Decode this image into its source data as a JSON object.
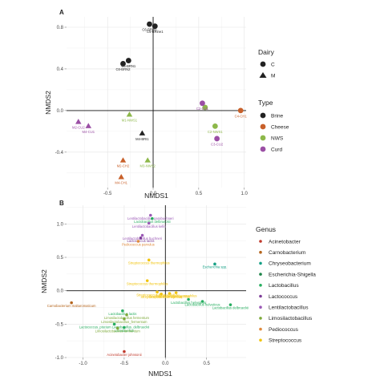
{
  "chart_data": [
    {
      "type": "scatter",
      "panel_label": "A",
      "xlabel": "NMDS1",
      "ylabel": "NMDS2",
      "xlim": [
        -0.95,
        1.02
      ],
      "ylim": [
        -0.74,
        0.9
      ],
      "x_ticks": [
        -0.5,
        0.0,
        0.5,
        1.0
      ],
      "x_tick_labels": [
        "-0.5",
        "0.0",
        "0.5",
        "1.0"
      ],
      "y_ticks": [
        -0.4,
        0.0,
        0.4,
        0.8
      ],
      "y_tick_labels": [
        "-0.4",
        "0.0",
        "0.4",
        "0.8"
      ],
      "grid": true,
      "reference_lines": {
        "x": 0,
        "y": 0
      },
      "legend": [
        {
          "title": "Dairy",
          "entries": [
            {
              "label": "C",
              "shape": "circle"
            },
            {
              "label": "M",
              "shape": "triangle"
            }
          ]
        },
        {
          "title": "Type",
          "entries": [
            {
              "label": "Brine",
              "color": "#222222"
            },
            {
              "label": "Cheese",
              "color": "#c8602a"
            },
            {
              "label": "NWS",
              "color": "#8db84a"
            },
            {
              "label": "Curd",
              "color": "#9b4fa5"
            }
          ]
        }
      ],
      "points": [
        {
          "x": -0.04,
          "y": 0.83,
          "shape": "circle",
          "type": "Brine",
          "label": "C6-BRine"
        },
        {
          "x": 0.02,
          "y": 0.81,
          "shape": "circle",
          "type": "Brine",
          "label": "C5-BRine1"
        },
        {
          "x": -0.27,
          "y": 0.48,
          "shape": "circle",
          "type": "Brine",
          "label": "C5-BRN1"
        },
        {
          "x": -0.33,
          "y": 0.45,
          "shape": "circle",
          "type": "Brine",
          "label": "C6-BRN2"
        },
        {
          "x": -0.12,
          "y": -0.22,
          "shape": "triangle",
          "type": "Brine",
          "label": "M4-BRI1"
        },
        {
          "x": 0.96,
          "y": 0.0,
          "shape": "circle",
          "type": "Cheese",
          "label": "C4-CH1"
        },
        {
          "x": -0.33,
          "y": -0.48,
          "shape": "triangle",
          "type": "Cheese",
          "label": "M2-CH2"
        },
        {
          "x": -0.35,
          "y": -0.64,
          "shape": "triangle",
          "type": "Cheese",
          "label": "M4-CH1"
        },
        {
          "x": -0.26,
          "y": -0.04,
          "shape": "triangle",
          "type": "NWS",
          "label": "M1-NWS1"
        },
        {
          "x": -0.06,
          "y": -0.48,
          "shape": "triangle",
          "type": "NWS",
          "label": "M3-NWS2"
        },
        {
          "x": 0.68,
          "y": -0.15,
          "shape": "circle",
          "type": "NWS",
          "label": "C2-NWS1"
        },
        {
          "x": 0.57,
          "y": 0.03,
          "shape": "circle",
          "type": "NWS",
          "label": ""
        },
        {
          "x": 0.54,
          "y": 0.07,
          "shape": "circle",
          "type": "Curd",
          "label": "C2-CU1"
        },
        {
          "x": 0.7,
          "y": -0.27,
          "shape": "circle",
          "type": "Curd",
          "label": "C3-CU2"
        },
        {
          "x": -0.82,
          "y": -0.11,
          "shape": "triangle",
          "type": "Curd",
          "label": "M2-CU2"
        },
        {
          "x": -0.71,
          "y": -0.15,
          "shape": "triangle",
          "type": "Curd",
          "label": "M4-CU1"
        }
      ]
    },
    {
      "type": "scatter",
      "panel_label": "B",
      "xlabel": "NMDS1",
      "ylabel": "NMDS2",
      "xlim": [
        -1.2,
        0.98
      ],
      "ylim": [
        -1.0,
        1.28
      ],
      "x_ticks": [
        -1.0,
        -0.5,
        0.0,
        0.5
      ],
      "x_tick_labels": [
        "-1.0",
        "-0.5",
        "0.0",
        "0.5"
      ],
      "y_ticks": [
        -1.0,
        -0.5,
        0.0,
        0.5,
        1.0
      ],
      "y_tick_labels": [
        "-1.0",
        "-0.5",
        "0.0",
        "0.5",
        "1.0"
      ],
      "grid": true,
      "reference_lines": {
        "x": 0,
        "y": 0
      },
      "legend": [
        {
          "title": "Genus",
          "entries": [
            {
              "label": "Acinetobacter",
              "color": "#c0392b"
            },
            {
              "label": "Carnobacterium",
              "color": "#b5651d"
            },
            {
              "label": "Chryseobacterium",
              "color": "#16a085"
            },
            {
              "label": "Escherichia-Shigella",
              "color": "#1e8449"
            },
            {
              "label": "Lactobacillus",
              "color": "#27ae60"
            },
            {
              "label": "Lactococcus",
              "color": "#7d3c98"
            },
            {
              "label": "Lentilactobacillus",
              "color": "#9b59b6"
            },
            {
              "label": "Limosilactobacillus",
              "color": "#7daa3a"
            },
            {
              "label": "Pediococcus",
              "color": "#e08a3c"
            },
            {
              "label": "Streptococcus",
              "color": "#f1c40f"
            }
          ]
        }
      ],
      "points": [
        {
          "x": -0.18,
          "y": 1.13,
          "genus": "Lentilactobacillus",
          "label": "Lentilactobacillus parabuchneri"
        },
        {
          "x": -0.16,
          "y": 1.08,
          "genus": "Lactobacillus",
          "label": "Lactobacillus delbrueckii"
        },
        {
          "x": -0.2,
          "y": 1.01,
          "genus": "Lentilactobacillus",
          "label": "Lentilactobacillus kefiri"
        },
        {
          "x": -0.28,
          "y": 0.83,
          "genus": "Lentilactobacillus",
          "label": "Lentilactobacillus buchneri"
        },
        {
          "x": -0.3,
          "y": 0.79,
          "genus": "Lactococcus",
          "label": "Lactococcus lactis"
        },
        {
          "x": -0.33,
          "y": 0.74,
          "genus": "Pediococcus",
          "label": "Pediococcus parvulus"
        },
        {
          "x": -0.2,
          "y": 0.46,
          "genus": "Streptococcus",
          "label": "Streptococcus thermophilus"
        },
        {
          "x": 0.6,
          "y": 0.4,
          "genus": "Chryseobacterium",
          "label": "Escherichia spp."
        },
        {
          "x": -0.22,
          "y": 0.15,
          "genus": "Streptococcus",
          "label": "Streptococcus thermophilus"
        },
        {
          "x": -0.1,
          "y": -0.02,
          "genus": "Streptococcus",
          "label": "Streptococcus thermophilus"
        },
        {
          "x": -0.05,
          "y": -0.05,
          "genus": "Streptococcus",
          "label": "Streptococcus thermophilus"
        },
        {
          "x": 0.05,
          "y": -0.04,
          "genus": "Streptococcus",
          "label": "Streptococcus thermophilus"
        },
        {
          "x": 0.13,
          "y": -0.03,
          "genus": "Streptococcus",
          "label": "Streptococcus thermophilus"
        },
        {
          "x": 0.28,
          "y": -0.13,
          "genus": "Lactobacillus",
          "label": "Lactobacillus helveticus"
        },
        {
          "x": 0.45,
          "y": -0.16,
          "genus": "Lactobacillus",
          "label": "Lactobacillus helveticus"
        },
        {
          "x": 0.79,
          "y": -0.21,
          "genus": "Lactobacillus",
          "label": "Lactobacillus delbrueckii"
        },
        {
          "x": -1.14,
          "y": -0.18,
          "genus": "Carnobacterium",
          "label": "Carnobacterium maltaromaticum"
        },
        {
          "x": -0.52,
          "y": -0.3,
          "genus": "Lactobacillus",
          "label": "Lactobacillus lactis"
        },
        {
          "x": -0.47,
          "y": -0.36,
          "genus": "Limosilactobacillus",
          "label": "Limosilactobacillus fermentum"
        },
        {
          "x": -0.5,
          "y": -0.42,
          "genus": "Limosilactobacillus",
          "label": "Limosilactobacillus_fermentum"
        },
        {
          "x": -0.62,
          "y": -0.5,
          "genus": "Lactobacillus",
          "label": "Lactococcus_piscium Lactobacillus_delbrueckii"
        },
        {
          "x": -0.5,
          "y": -0.55,
          "genus": "Lactobacillus",
          "label": "Lactobacillus"
        },
        {
          "x": -0.58,
          "y": -0.56,
          "genus": "Limosilactobacillus",
          "label": "Limosilactobacillus fermentum"
        },
        {
          "x": -0.5,
          "y": -0.91,
          "genus": "Acinetobacter",
          "label": "Acinetobacter johnsonii"
        }
      ]
    }
  ]
}
